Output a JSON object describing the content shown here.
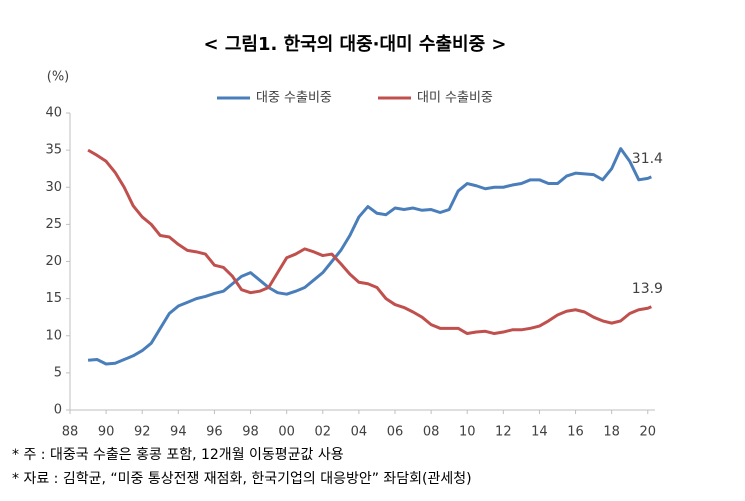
{
  "chart_data": {
    "type": "line",
    "title": "< 그림1. 한국의 대중·대미 수출비중 >",
    "y_label": "(%)",
    "x": [
      1989,
      1989.5,
      1990,
      1990.5,
      1991,
      1991.5,
      1992,
      1992.5,
      1993,
      1993.5,
      1994,
      1994.5,
      1995,
      1995.5,
      1996,
      1996.5,
      1997,
      1997.5,
      1998,
      1998.5,
      1999,
      1999.5,
      2000,
      2000.5,
      2001,
      2001.5,
      2002,
      2002.5,
      2003,
      2003.5,
      2004,
      2004.5,
      2005,
      2005.5,
      2006,
      2006.5,
      2007,
      2007.5,
      2008,
      2008.5,
      2009,
      2009.5,
      2010,
      2010.5,
      2011,
      2011.5,
      2012,
      2012.5,
      2013,
      2013.5,
      2014,
      2014.5,
      2015,
      2015.5,
      2016,
      2016.5,
      2017,
      2017.5,
      2018,
      2018.5,
      2019,
      2019.5,
      2020,
      2020.2
    ],
    "series": [
      {
        "name": "대중 수출비중",
        "color": "#4a7ebb",
        "values": [
          6.7,
          6.8,
          6.2,
          6.3,
          6.8,
          7.3,
          8,
          9,
          11,
          13,
          14,
          14.5,
          15,
          15.3,
          15.7,
          16,
          17,
          18,
          18.5,
          17.5,
          16.5,
          15.8,
          15.6,
          16,
          16.5,
          17.5,
          18.5,
          20,
          21.5,
          23.5,
          26,
          27.4,
          26.5,
          26.3,
          27.2,
          27,
          27.2,
          26.9,
          27,
          26.6,
          27,
          29.5,
          30.5,
          30.2,
          29.8,
          30,
          30,
          30.3,
          30.5,
          31,
          31,
          30.5,
          30.5,
          31.5,
          31.9,
          31.8,
          31.7,
          31,
          32.5,
          35.2,
          33.5,
          31,
          31.2,
          31.4
        ]
      },
      {
        "name": "대미 수출비중",
        "color": "#c0504d",
        "values": [
          35,
          34.3,
          33.5,
          32,
          30,
          27.5,
          26,
          25,
          23.5,
          23.3,
          22.3,
          21.5,
          21.3,
          21,
          19.5,
          19.2,
          18,
          16.2,
          15.8,
          16,
          16.5,
          18.5,
          20.5,
          21,
          21.7,
          21.3,
          20.8,
          21,
          19.7,
          18.3,
          17.2,
          17,
          16.5,
          15,
          14.2,
          13.8,
          13.2,
          12.5,
          11.5,
          11,
          11,
          11,
          10.3,
          10.5,
          10.6,
          10.3,
          10.5,
          10.8,
          10.8,
          11,
          11.3,
          12,
          12.8,
          13.3,
          13.5,
          13.2,
          12.5,
          12,
          11.7,
          12,
          13,
          13.5,
          13.7,
          13.9
        ]
      }
    ],
    "xlim": [
      1988,
      2020.4
    ],
    "ylim": [
      0,
      40
    ],
    "xticks": [
      {
        "value": 1988,
        "label": "88"
      },
      {
        "value": 1990,
        "label": "90"
      },
      {
        "value": 1992,
        "label": "92"
      },
      {
        "value": 1994,
        "label": "94"
      },
      {
        "value": 1996,
        "label": "96"
      },
      {
        "value": 1998,
        "label": "98"
      },
      {
        "value": 2000,
        "label": "00"
      },
      {
        "value": 2002,
        "label": "02"
      },
      {
        "value": 2004,
        "label": "04"
      },
      {
        "value": 2006,
        "label": "06"
      },
      {
        "value": 2008,
        "label": "08"
      },
      {
        "value": 2010,
        "label": "10"
      },
      {
        "value": 2012,
        "label": "12"
      },
      {
        "value": 2014,
        "label": "14"
      },
      {
        "value": 2016,
        "label": "16"
      },
      {
        "value": 2018,
        "label": "18"
      },
      {
        "value": 2020,
        "label": "20"
      }
    ],
    "yticks": [
      0,
      5,
      10,
      15,
      20,
      25,
      30,
      35,
      40
    ],
    "grid": false,
    "legend": "top",
    "notes": [
      "* 주 : 대중국 수출은 홍콩 포함, 12개월 이동평균값 사용",
      "* 자료 : 김학균, “미중 통상전쟁 재점화, 한국기업의 대응방안” 좌담회(관세청)"
    ]
  }
}
